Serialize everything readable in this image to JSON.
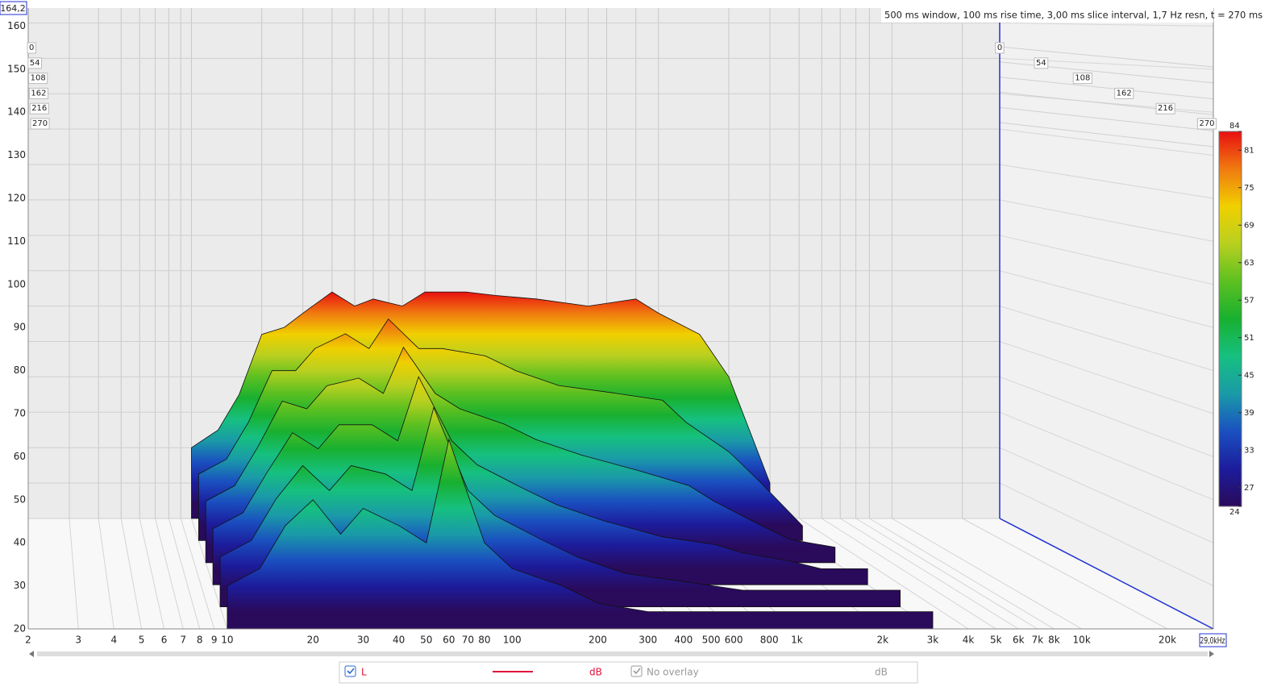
{
  "chart_data": {
    "type": "waterfall",
    "annotation": "500 ms window, 100 ms rise time, 3,00 ms slice interval, 1,7 Hz resn, t = 270 ms",
    "y_top_readout": "164,2",
    "x_right_readout": "29,0kHz",
    "xlim": [
      2,
      29000
    ],
    "log_x": true,
    "ylim": [
      20,
      164.2
    ],
    "xticks": [
      2,
      3,
      4,
      5,
      6,
      7,
      8,
      9,
      10,
      20,
      30,
      40,
      50,
      60,
      70,
      80,
      100,
      200,
      300,
      400,
      500,
      600,
      800,
      {
        "value": 1000,
        "label": "1k"
      },
      {
        "value": 2000,
        "label": "2k"
      },
      {
        "value": 3000,
        "label": "3k"
      },
      {
        "value": 4000,
        "label": "4k"
      },
      {
        "value": 5000,
        "label": "5k"
      },
      {
        "value": 6000,
        "label": "6k"
      },
      {
        "value": 7000,
        "label": "7k"
      },
      {
        "value": 8000,
        "label": "8k"
      },
      {
        "value": 10000,
        "label": "10k"
      },
      {
        "value": 20000,
        "label": "20k"
      }
    ],
    "yticks": [
      20,
      30,
      40,
      50,
      60,
      70,
      80,
      90,
      100,
      110,
      120,
      130,
      140,
      150,
      160
    ],
    "zticks": [
      0,
      54,
      108,
      162,
      216,
      270
    ],
    "x": [
      10,
      13,
      16,
      20,
      25,
      30,
      40,
      50,
      60,
      80,
      100,
      150,
      200,
      300,
      500,
      800,
      1000,
      1500,
      2000,
      3000
    ],
    "series": [
      {
        "values": [
          40,
          45,
          55,
          72,
          74,
          78,
          84,
          80,
          82,
          80,
          84,
          84,
          83,
          82,
          80,
          82,
          78,
          72,
          60,
          30
        ]
      },
      {
        "values": [
          38,
          42,
          52,
          66,
          66,
          72,
          76,
          72,
          80,
          72,
          72,
          70,
          66,
          62,
          60,
          58,
          52,
          44,
          36,
          24
        ]
      },
      {
        "values": [
          36,
          40,
          50,
          62,
          60,
          66,
          68,
          64,
          76,
          64,
          60,
          56,
          52,
          48,
          44,
          40,
          36,
          30,
          26,
          24
        ]
      },
      {
        "values": [
          34,
          38,
          48,
          58,
          54,
          60,
          60,
          56,
          72,
          56,
          50,
          44,
          40,
          36,
          32,
          30,
          28,
          26,
          24,
          24
        ]
      },
      {
        "values": [
          32,
          36,
          46,
          54,
          48,
          54,
          52,
          48,
          68,
          48,
          42,
          36,
          32,
          28,
          26,
          24,
          24,
          24,
          24,
          24
        ]
      },
      {
        "values": [
          30,
          34,
          44,
          50,
          42,
          48,
          44,
          40,
          64,
          40,
          34,
          30,
          26,
          24,
          24,
          24,
          24,
          24,
          24,
          24
        ]
      }
    ],
    "colorbar": {
      "range": [
        24,
        84
      ],
      "ticks": [
        84,
        81,
        75,
        69,
        63,
        57,
        51,
        45,
        39,
        33,
        27,
        24
      ],
      "colors": [
        "#2a0a5a",
        "#1c1c9c",
        "#1a50c0",
        "#1a9aa8",
        "#16c080",
        "#18b030",
        "#5cc020",
        "#b8d020",
        "#f0d000",
        "#f07a10",
        "#e81010"
      ]
    },
    "legend": {
      "items": [
        {
          "name": "L",
          "unit": "dB",
          "color": "#e0103a"
        },
        {
          "name": "No overlay",
          "unit": "dB"
        }
      ]
    }
  }
}
